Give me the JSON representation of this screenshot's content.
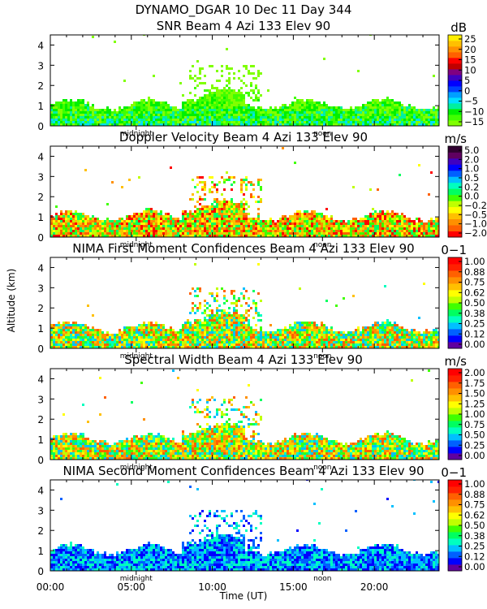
{
  "header": {
    "line1": "DYNAMO_DGAR  10 Dec 11 Day 344"
  },
  "chart_data": [
    {
      "type": "heatmap",
      "title": "SNR Beam 4 Azi 133 Elev 90",
      "unit": "dB",
      "ylabel": "Altitude (km)",
      "xlabel": "Time (UT)",
      "ylim": [
        0,
        4.5
      ],
      "xlim": [
        0,
        24
      ],
      "yticks": [
        "0",
        "1",
        "2",
        "3",
        "4"
      ],
      "colorbar": {
        "labels": [
          "−15",
          "−10",
          "−5",
          "0",
          "5",
          "10",
          "15",
          "20",
          "25"
        ],
        "colors": [
          "#80ff00",
          "#40ff00",
          "#00f000",
          "#00f0a0",
          "#00e0ff",
          "#00a0ff",
          "#0040ff",
          "#0000ff",
          "#4000c0",
          "#800080",
          "#c00000",
          "#ff0000",
          "#ff6000",
          "#ff9000",
          "#ffc000",
          "#ffee00"
        ]
      }
    },
    {
      "type": "heatmap",
      "title": "Doppler Velocity Beam 4 Azi 133 Elev 90",
      "unit": "m/s",
      "ylim": [
        0,
        4.5
      ],
      "xlim": [
        0,
        24
      ],
      "yticks": [
        "0",
        "1",
        "2",
        "3",
        "4"
      ],
      "colorbar": {
        "labels": [
          "−2.0",
          "−1.0",
          "−0.5",
          "−0.2",
          "0.0",
          "0.2",
          "0.5",
          "1.0",
          "2.0",
          "5.0"
        ],
        "colors": [
          "#ff0000",
          "#ff6000",
          "#ff9000",
          "#ffc000",
          "#ffff00",
          "#c0ff00",
          "#40ff00",
          "#00ff60",
          "#00ffc0",
          "#00c0ff",
          "#0060ff",
          "#0000ff",
          "#4000c0",
          "#600060",
          "#300030"
        ]
      }
    },
    {
      "type": "heatmap",
      "title": "NIMA First Moment Confidences Beam 4 Azi 133 Elev 90",
      "unit": "0−1",
      "ylim": [
        0,
        4.5
      ],
      "xlim": [
        0,
        24
      ],
      "yticks": [
        "0",
        "1",
        "2",
        "3",
        "4"
      ],
      "colorbar": {
        "labels": [
          "0.00",
          "0.12",
          "0.25",
          "0.38",
          "0.50",
          "0.62",
          "0.75",
          "0.88",
          "1.00"
        ],
        "colors": [
          "#6000a0",
          "#0000ff",
          "#0060ff",
          "#00c0ff",
          "#00ffc0",
          "#00ff60",
          "#40ff00",
          "#c0ff00",
          "#ffff00",
          "#ffc000",
          "#ff9000",
          "#ff6000",
          "#ff2000",
          "#ff0000"
        ]
      }
    },
    {
      "type": "heatmap",
      "title": "Spectral Width Beam 4 Azi 133 Elev 90",
      "unit": "m/s",
      "ylim": [
        0,
        4.5
      ],
      "xlim": [
        0,
        24
      ],
      "yticks": [
        "0",
        "1",
        "2",
        "3",
        "4"
      ],
      "colorbar": {
        "labels": [
          "0.00",
          "0.25",
          "0.50",
          "0.75",
          "1.00",
          "1.25",
          "1.50",
          "1.75",
          "2.00"
        ],
        "colors": [
          "#6000a0",
          "#0000ff",
          "#0060ff",
          "#00c0ff",
          "#00ffc0",
          "#00ff60",
          "#40ff00",
          "#c0ff00",
          "#ffff00",
          "#ffc000",
          "#ff9000",
          "#ff6000",
          "#ff2000",
          "#ff0000"
        ]
      }
    },
    {
      "type": "heatmap",
      "title": "NIMA Second Moment Confidences Beam 4 Azi 133 Elev 90",
      "unit": "0−1",
      "ylim": [
        0,
        4.5
      ],
      "xlim": [
        0,
        24
      ],
      "yticks": [
        "0",
        "1",
        "2",
        "3",
        "4"
      ],
      "xticks": [
        "00:00",
        "05:00",
        "10:00",
        "15:00",
        "20:00"
      ],
      "colorbar": {
        "labels": [
          "0.00",
          "0.12",
          "0.25",
          "0.38",
          "0.50",
          "0.62",
          "0.75",
          "0.88",
          "1.00"
        ],
        "colors": [
          "#6000a0",
          "#0000ff",
          "#0060ff",
          "#00c0ff",
          "#00ffc0",
          "#00ff60",
          "#40ff00",
          "#c0ff00",
          "#ffff00",
          "#ffc000",
          "#ff9000",
          "#ff6000",
          "#ff2000",
          "#ff0000"
        ]
      }
    }
  ],
  "markers": {
    "midnight": "midnight",
    "noon": "noon"
  },
  "axes": {
    "ylabel": "Altitude (km)",
    "xlabel": "Time (UT)"
  }
}
